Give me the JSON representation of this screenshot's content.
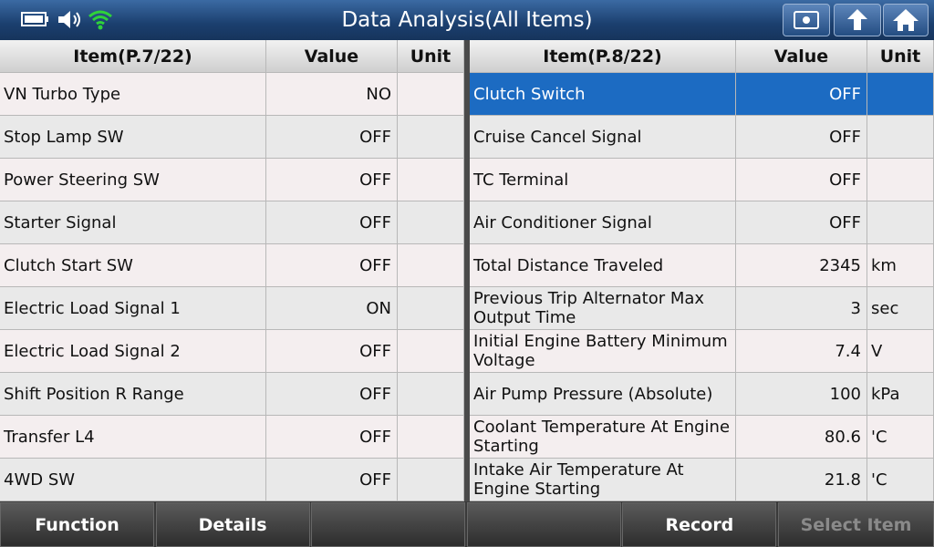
{
  "header": {
    "title": "Data Analysis(All Items)"
  },
  "left_table": {
    "headers": [
      "Item(P.7/22)",
      "Value",
      "Unit"
    ],
    "rows": [
      {
        "item": "VN Turbo Type",
        "value": "NO"
      },
      {
        "item": "Stop Lamp SW",
        "value": "OFF"
      },
      {
        "item": "Power Steering SW",
        "value": "OFF"
      },
      {
        "item": "Starter Signal",
        "value": "OFF"
      },
      {
        "item": "Clutch Start SW",
        "value": "OFF"
      },
      {
        "item": "Electric Load Signal 1",
        "value": "ON"
      },
      {
        "item": "Electric Load Signal 2",
        "value": "OFF"
      },
      {
        "item": "Shift Position R Range",
        "value": "OFF"
      },
      {
        "item": "Transfer L4",
        "value": "OFF"
      },
      {
        "item": "4WD SW",
        "value": "OFF"
      }
    ]
  },
  "right_table": {
    "headers": [
      "Item(P.8/22)",
      "Value",
      "Unit"
    ],
    "rows": [
      {
        "item": "Clutch Switch",
        "value": "OFF",
        "selected": true
      },
      {
        "item": "Cruise Cancel Signal",
        "value": "OFF"
      },
      {
        "item": "TC Terminal",
        "value": "OFF"
      },
      {
        "item": "Air Conditioner Signal",
        "value": "OFF"
      },
      {
        "item": "Total Distance Traveled",
        "value": "2345",
        "unit": "km"
      },
      {
        "item": "Previous Trip Alternator Max Output Time",
        "value": "3",
        "unit": "sec"
      },
      {
        "item": "Initial Engine Battery Minimum Voltage",
        "value": "7.4",
        "unit": "V"
      },
      {
        "item": "Air Pump Pressure (Absolute)",
        "value": "100",
        "unit": "kPa"
      },
      {
        "item": "Coolant Temperature At Engine Starting",
        "value": "80.6",
        "unit": "'C"
      },
      {
        "item": "Intake Air Temperature At Engine Starting",
        "value": "21.8",
        "unit": "'C"
      }
    ]
  },
  "footer": {
    "buttons": [
      {
        "label": "Function",
        "slot": 0
      },
      {
        "label": "Details",
        "slot": 1
      },
      {
        "label": "Record",
        "slot": 4
      },
      {
        "label": "Select Item",
        "slot": 5,
        "disabled": true
      }
    ]
  }
}
